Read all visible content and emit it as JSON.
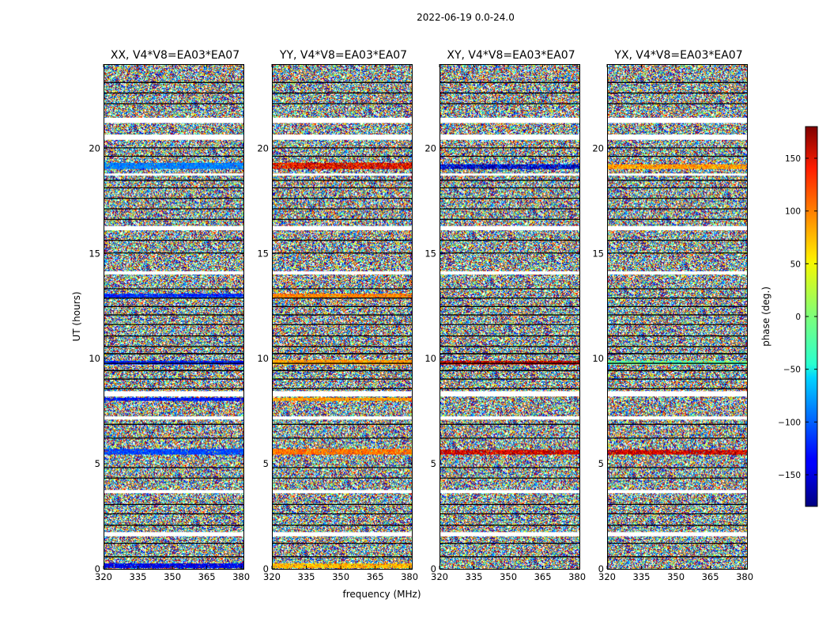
{
  "chart_data": {
    "type": "heatmap",
    "title": "2022-06-19 0.0-24.0",
    "xlabel": "frequency (MHz)",
    "ylabel": "UT (hours)",
    "colorbar": {
      "label": "phase (deg.)",
      "range": [
        -180,
        180
      ],
      "ticks": [
        150,
        100,
        50,
        0,
        -50,
        -100,
        -150
      ],
      "tick_labels": [
        "150",
        "100",
        "50",
        "0",
        "−50",
        "−100",
        "−150"
      ],
      "colormap": "jet"
    },
    "x_range": [
      320,
      381
    ],
    "x_ticks": [
      320,
      335,
      350,
      365,
      380
    ],
    "y_range": [
      0,
      24
    ],
    "y_ticks": [
      0,
      5,
      10,
      15,
      20
    ],
    "gaps_white": [
      [
        1.55,
        1.75
      ],
      [
        3.6,
        3.75
      ],
      [
        7.1,
        7.25
      ],
      [
        8.2,
        8.45
      ],
      [
        14.0,
        14.15
      ],
      [
        16.1,
        16.3
      ],
      [
        18.7,
        18.8
      ],
      [
        20.4,
        20.65
      ],
      [
        21.2,
        21.45
      ]
    ],
    "gaps_black": [
      [
        0.55,
        0.6
      ],
      [
        1.2,
        1.24
      ],
      [
        2.05,
        2.1
      ],
      [
        2.6,
        2.64
      ],
      [
        3.05,
        3.09
      ],
      [
        4.3,
        4.34
      ],
      [
        4.8,
        4.84
      ],
      [
        6.2,
        6.24
      ],
      [
        6.85,
        6.9
      ],
      [
        8.55,
        8.6
      ],
      [
        9.0,
        9.05
      ],
      [
        9.4,
        9.46
      ],
      [
        9.75,
        9.8
      ],
      [
        10.2,
        10.26
      ],
      [
        10.55,
        10.6
      ],
      [
        11.05,
        11.1
      ],
      [
        11.6,
        11.64
      ],
      [
        12.05,
        12.1
      ],
      [
        12.45,
        12.5
      ],
      [
        12.85,
        12.9
      ],
      [
        13.3,
        13.34
      ],
      [
        15.0,
        15.04
      ],
      [
        15.6,
        15.65
      ],
      [
        16.6,
        16.64
      ],
      [
        17.1,
        17.14
      ],
      [
        17.6,
        17.64
      ],
      [
        18.1,
        18.14
      ],
      [
        18.45,
        18.5
      ],
      [
        19.6,
        19.64
      ],
      [
        20.0,
        20.04
      ],
      [
        22.1,
        22.14
      ],
      [
        22.6,
        22.65
      ],
      [
        23.1,
        23.15
      ]
    ],
    "panels": [
      {
        "title": "XX, V4*V8=EA03*EA07",
        "bands": [
          {
            "y": [
              19.0,
              19.3
            ],
            "phase": -90,
            "spread": 18
          },
          {
            "y": [
              5.45,
              5.7
            ],
            "phase": -110,
            "spread": 20
          },
          {
            "y": [
              9.7,
              9.9
            ],
            "phase": -125,
            "spread": 25
          },
          {
            "y": [
              12.9,
              13.1
            ],
            "phase": -120,
            "spread": 25
          },
          {
            "y": [
              8.0,
              8.15
            ],
            "phase": -130,
            "spread": 25
          },
          {
            "y": [
              0.05,
              0.25
            ],
            "phase": -140,
            "spread": 25
          }
        ]
      },
      {
        "title": "YY, V4*V8=EA03*EA07",
        "bands": [
          {
            "y": [
              19.0,
              19.3
            ],
            "phase": 140,
            "spread": 50
          },
          {
            "y": [
              5.45,
              5.7
            ],
            "phase": 95,
            "spread": 25
          },
          {
            "y": [
              9.7,
              9.95
            ],
            "phase": 80,
            "spread": 25
          },
          {
            "y": [
              12.9,
              13.1
            ],
            "phase": 90,
            "spread": 25
          },
          {
            "y": [
              8.0,
              8.15
            ],
            "phase": 80,
            "spread": 25
          },
          {
            "y": [
              0.05,
              0.25
            ],
            "phase": 70,
            "spread": 25
          }
        ]
      },
      {
        "title": "XY, V4*V8=EA03*EA07",
        "bands": [
          {
            "y": [
              19.0,
              19.25
            ],
            "phase": -150,
            "spread": 60
          },
          {
            "y": [
              5.45,
              5.65
            ],
            "phase": 150,
            "spread": 40
          },
          {
            "y": [
              9.7,
              9.9
            ],
            "phase": 160,
            "spread": 60
          }
        ]
      },
      {
        "title": "YX, V4*V8=EA03*EA07",
        "bands": [
          {
            "y": [
              19.0,
              19.25
            ],
            "phase": 80,
            "spread": 30
          },
          {
            "y": [
              5.45,
              5.65
            ],
            "phase": 150,
            "spread": 40
          },
          {
            "y": [
              9.7,
              9.9
            ],
            "phase": -10,
            "spread": 40
          }
        ]
      }
    ]
  }
}
